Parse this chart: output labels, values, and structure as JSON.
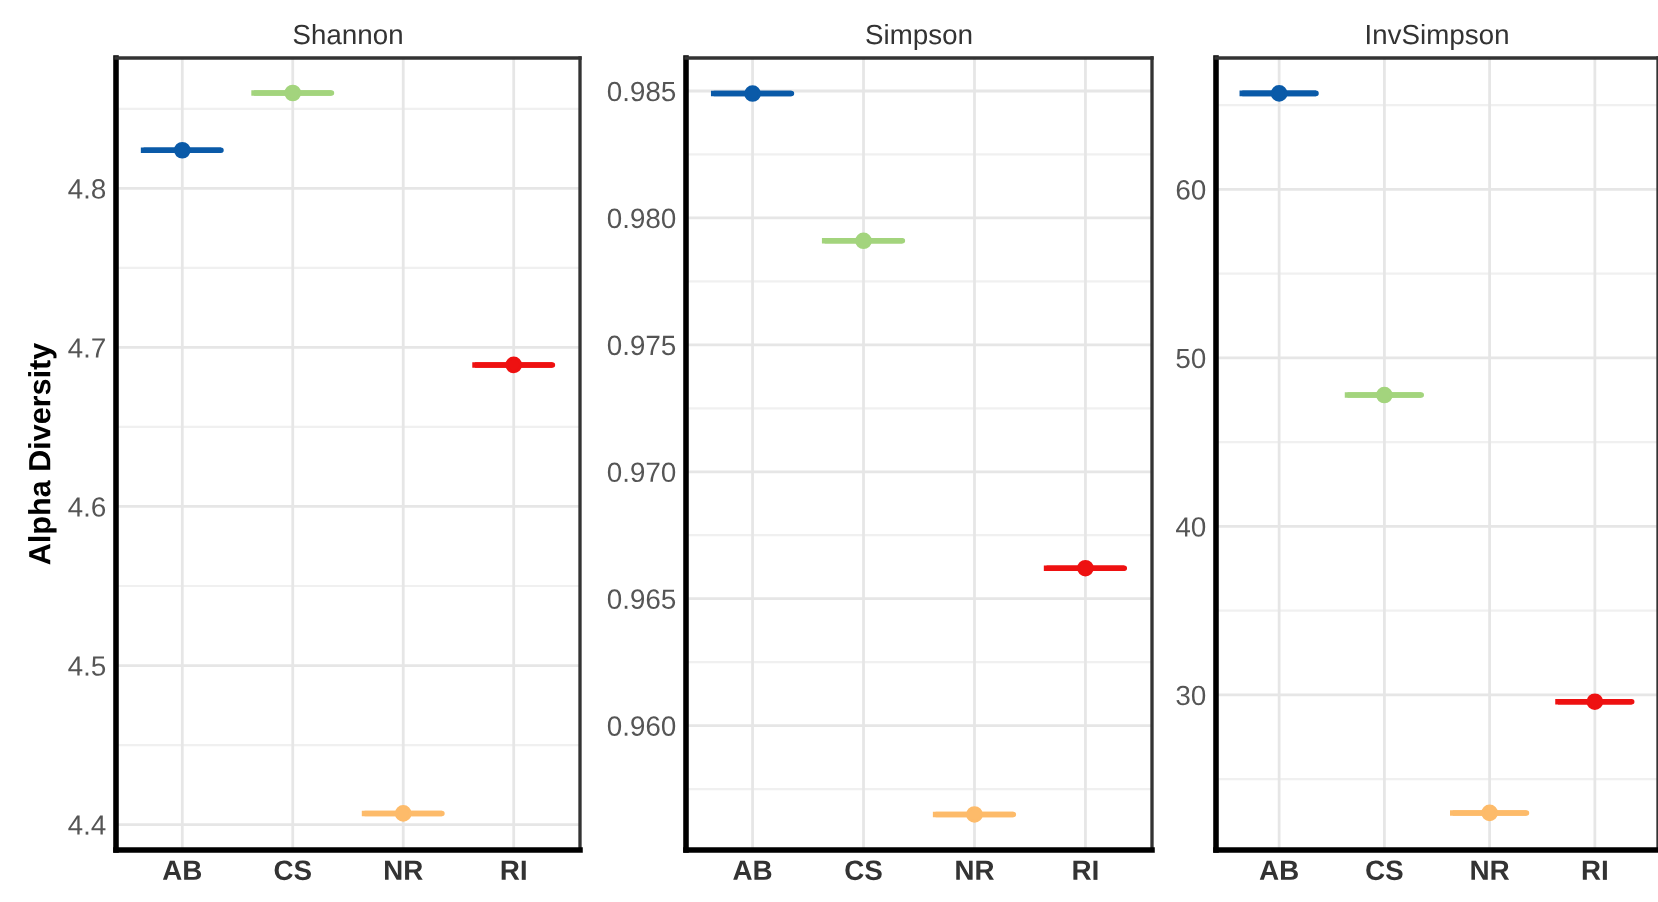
{
  "chart_data": [
    {
      "type": "box",
      "title": "Shannon",
      "ylabel": "Alpha Diversity",
      "categories": [
        "AB",
        "CS",
        "NR",
        "RI"
      ],
      "colors": [
        "#0a5aa8",
        "#a3d47d",
        "#fdbb6a",
        "#ee1111"
      ],
      "grid": true,
      "boxes": [
        {
          "low": 4.824,
          "q1": 4.824,
          "median": 4.824,
          "q3": 4.824,
          "high": 4.824,
          "mean": 4.824
        },
        {
          "low": 4.86,
          "q1": 4.86,
          "median": 4.86,
          "q3": 4.86,
          "high": 4.86,
          "mean": 4.86
        },
        {
          "low": 4.407,
          "q1": 4.407,
          "median": 4.407,
          "q3": 4.407,
          "high": 4.407,
          "mean": 4.407
        },
        {
          "low": 4.689,
          "q1": 4.689,
          "median": 4.689,
          "q3": 4.689,
          "high": 4.689,
          "mean": 4.689
        }
      ],
      "ylim": [
        4.384,
        4.882
      ],
      "yticks": [
        4.4,
        4.5,
        4.6,
        4.7,
        4.8
      ]
    },
    {
      "type": "box",
      "title": "Simpson",
      "categories": [
        "AB",
        "CS",
        "NR",
        "RI"
      ],
      "colors": [
        "#0a5aa8",
        "#a3d47d",
        "#fdbb6a",
        "#ee1111"
      ],
      "grid": true,
      "boxes": [
        {
          "low": 0.9849,
          "q1": 0.9849,
          "median": 0.9849,
          "q3": 0.9849,
          "high": 0.9849,
          "mean": 0.9849
        },
        {
          "low": 0.9791,
          "q1": 0.9791,
          "median": 0.9791,
          "q3": 0.9791,
          "high": 0.9791,
          "mean": 0.9791
        },
        {
          "low": 0.9565,
          "q1": 0.9565,
          "median": 0.9565,
          "q3": 0.9565,
          "high": 0.9565,
          "mean": 0.9565
        },
        {
          "low": 0.9662,
          "q1": 0.9662,
          "median": 0.9662,
          "q3": 0.9662,
          "high": 0.9662,
          "mean": 0.9662
        }
      ],
      "ylim": [
        0.9551,
        0.9863
      ],
      "yticks": [
        {
          "value": 0.96,
          "label": "0.960"
        },
        {
          "value": 0.965,
          "label": "0.965"
        },
        {
          "value": 0.97,
          "label": "0.970"
        },
        {
          "value": 0.975,
          "label": "0.975"
        },
        {
          "value": 0.98,
          "label": "0.980"
        },
        {
          "value": 0.985,
          "label": "0.985"
        }
      ]
    },
    {
      "type": "box",
      "title": "InvSimpson",
      "categories": [
        "AB",
        "CS",
        "NR",
        "RI"
      ],
      "colors": [
        "#0a5aa8",
        "#a3d47d",
        "#fdbb6a",
        "#ee1111"
      ],
      "grid": true,
      "boxes": [
        {
          "low": 65.7,
          "q1": 65.7,
          "median": 65.7,
          "q3": 65.7,
          "high": 65.7,
          "mean": 65.7
        },
        {
          "low": 47.8,
          "q1": 47.8,
          "median": 47.8,
          "q3": 47.8,
          "high": 47.8,
          "mean": 47.8
        },
        {
          "low": 23.0,
          "q1": 23.0,
          "median": 23.0,
          "q3": 23.0,
          "high": 23.0,
          "mean": 23.0
        },
        {
          "low": 29.6,
          "q1": 29.6,
          "median": 29.6,
          "q3": 29.6,
          "high": 29.6,
          "mean": 29.6
        }
      ],
      "ylim": [
        20.8,
        67.8
      ],
      "yticks": [
        30,
        40,
        50,
        60
      ]
    }
  ]
}
